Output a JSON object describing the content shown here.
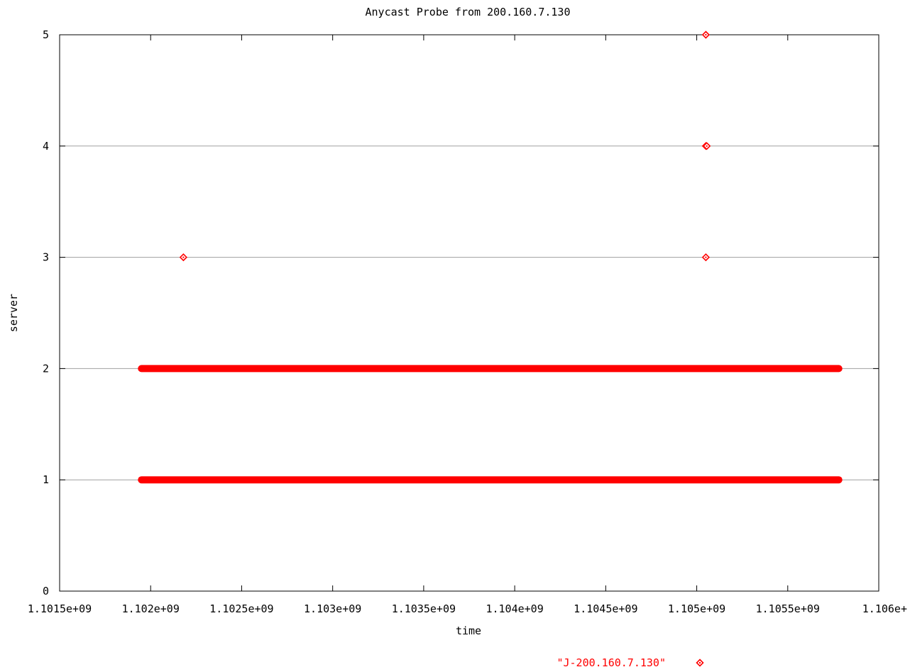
{
  "chart_data": {
    "type": "scatter",
    "title": "Anycast Probe from 200.160.7.130",
    "xlabel": "time",
    "ylabel": "server",
    "xlim": [
      1101500000,
      1106000000
    ],
    "ylim": [
      0,
      5
    ],
    "x_ticks": [
      {
        "value": 1101500000,
        "label": "1.1015e+09"
      },
      {
        "value": 1102000000,
        "label": "1.102e+09"
      },
      {
        "value": 1102500000,
        "label": "1.1025e+09"
      },
      {
        "value": 1103000000,
        "label": "1.103e+09"
      },
      {
        "value": 1103500000,
        "label": "1.1035e+09"
      },
      {
        "value": 1104000000,
        "label": "1.104e+09"
      },
      {
        "value": 1104500000,
        "label": "1.1045e+09"
      },
      {
        "value": 1105000000,
        "label": "1.105e+09"
      },
      {
        "value": 1105500000,
        "label": "1.1055e+09"
      },
      {
        "value": 1106000000,
        "label": "1.106e+"
      }
    ],
    "y_ticks": [
      {
        "value": 0,
        "label": "0"
      },
      {
        "value": 1,
        "label": "1"
      },
      {
        "value": 2,
        "label": "2"
      },
      {
        "value": 3,
        "label": "3"
      },
      {
        "value": 4,
        "label": "4"
      },
      {
        "value": 5,
        "label": "5"
      }
    ],
    "grid": "horizontal",
    "legend_position": "bottom-right",
    "series": [
      {
        "name": "\"J-200.160.7.130\"",
        "color": "#ff0000",
        "marker": "diamond",
        "dense_runs": [
          {
            "y": 1,
            "x_start": 1101930000,
            "x_end": 1105800000
          },
          {
            "y": 2,
            "x_start": 1101930000,
            "x_end": 1105800000
          }
        ],
        "points": [
          {
            "x": 1102180000,
            "y": 3
          },
          {
            "x": 1105050000,
            "y": 3
          },
          {
            "x": 1105050000,
            "y": 4
          },
          {
            "x": 1105055000,
            "y": 4
          },
          {
            "x": 1105050000,
            "y": 5
          }
        ]
      }
    ]
  }
}
